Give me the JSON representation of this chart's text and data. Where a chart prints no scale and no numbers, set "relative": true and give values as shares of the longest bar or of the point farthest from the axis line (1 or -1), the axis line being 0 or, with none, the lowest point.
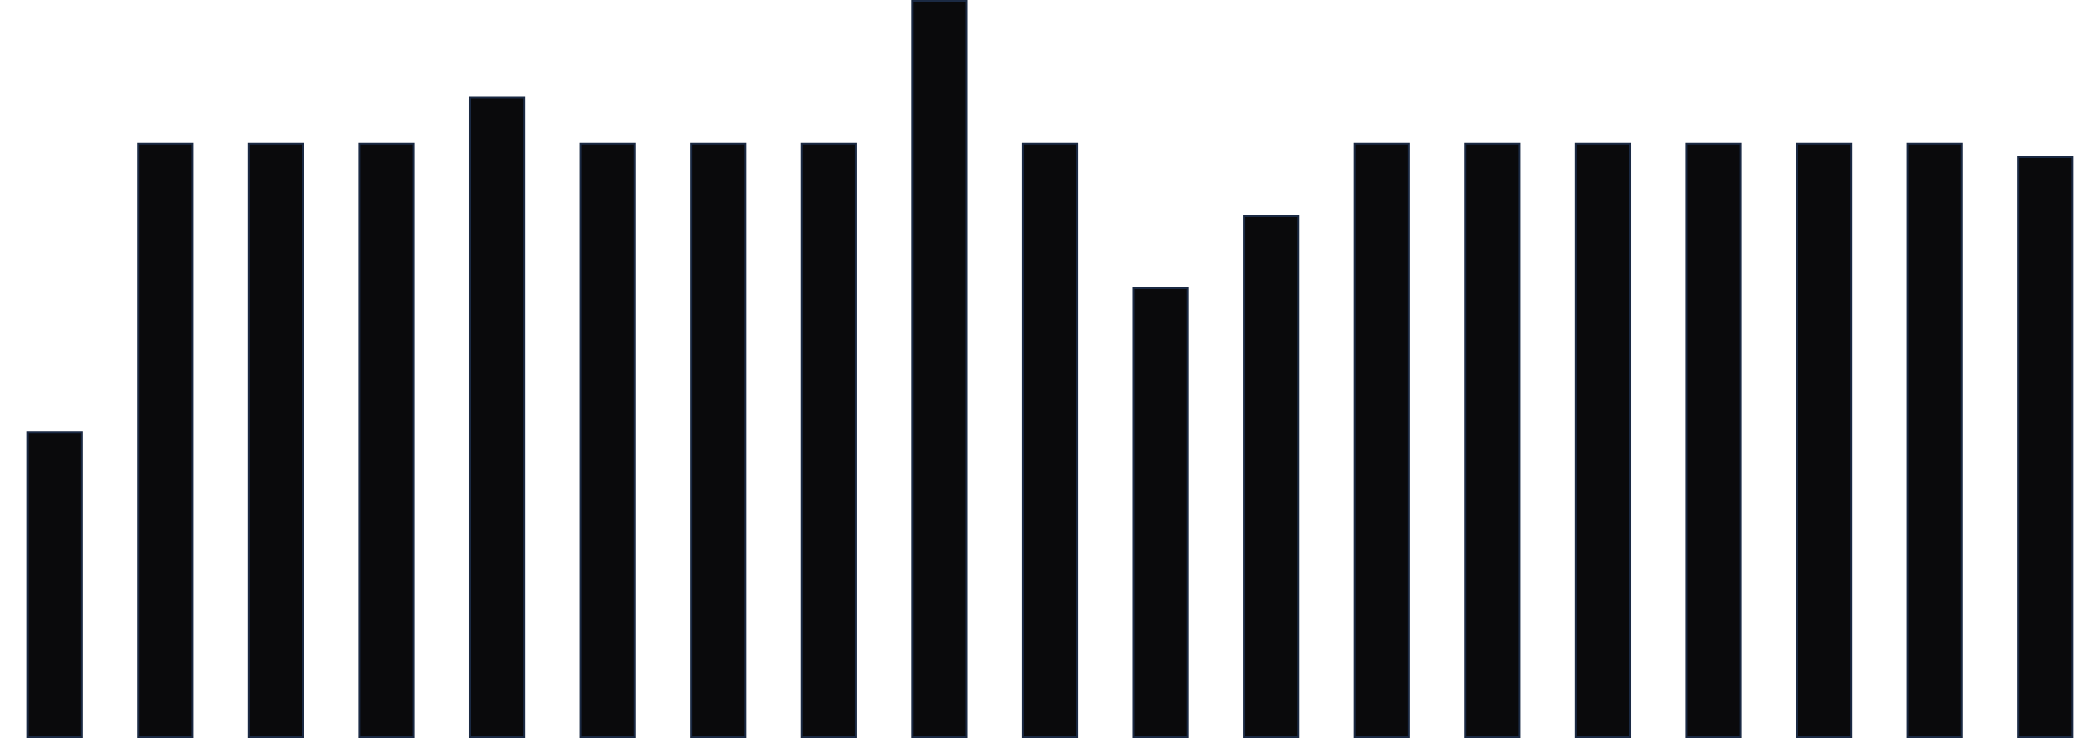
{
  "chart_data": {
    "type": "bar",
    "relative": true,
    "color": "#0a0a0c",
    "categories": [
      null,
      null,
      null,
      null,
      null,
      null,
      null,
      null,
      null,
      null,
      null,
      null,
      null,
      null,
      null,
      null,
      null,
      null,
      null
    ],
    "values": [
      0.414,
      0.806,
      0.806,
      0.806,
      0.869,
      0.806,
      0.806,
      0.806,
      1,
      0.806,
      0.61,
      0.708,
      0.806,
      0.806,
      0.806,
      0.806,
      0.806,
      0.806,
      0.788
    ]
  }
}
